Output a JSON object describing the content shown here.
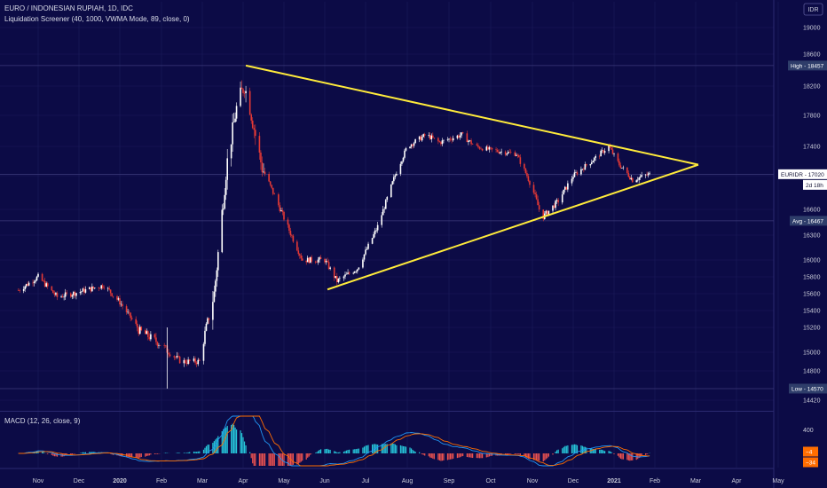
{
  "header": {
    "title": "EURO / INDONESIAN RUPIAH, 1D, IDC",
    "indicator": "Liquidation Screener (40, 1000, VWMA Mode, 89, close, 0)",
    "macd_title": "MACD (12, 26, close, 9)",
    "currency_button": "IDR"
  },
  "colors": {
    "background": "#0c0b46",
    "grid": "#1c1b5a",
    "up_candle": "#ffffff",
    "down_candle": "#e53935",
    "triangle": "#ffeb3b",
    "macd_line": "#2196f3",
    "signal_line": "#ff6d00",
    "hist_up": "#26c6da",
    "hist_down": "#ef5350"
  },
  "tags": {
    "high": "High - 18457",
    "price": "EURIDR - 17020",
    "countdown": "2d 18h",
    "avg": "Avg - 16467",
    "low": "Low - 14570"
  },
  "macd_axis": {
    "label": "400",
    "value_1": "−4",
    "value_2": "−34"
  },
  "chart_data": {
    "type": "candlestick",
    "symbol": "EURIDR",
    "timeframe": "1D",
    "source": "IDC",
    "y_ticks": [
      19000,
      18600,
      18200,
      17800,
      17400,
      17000,
      16600,
      16300,
      16000,
      15800,
      15600,
      15400,
      15200,
      15000,
      14800,
      14420
    ],
    "ylim": [
      14350,
      19150
    ],
    "x_ticks": [
      "Nov",
      "Dec",
      "2020",
      "Feb",
      "Mar",
      "Apr",
      "May",
      "Jun",
      "Jul",
      "Aug",
      "Sep",
      "Oct",
      "Nov",
      "Dec",
      "2021",
      "Feb",
      "Mar",
      "Apr",
      "May"
    ],
    "x_tick_start": "2019-11",
    "key_levels": {
      "high": 18457,
      "last": 17020,
      "avg": 16467,
      "low": 14570
    },
    "close_path": [
      [
        "2019-10-17",
        15640
      ],
      [
        "2019-11-01",
        15800
      ],
      [
        "2019-11-15",
        15560
      ],
      [
        "2019-12-01",
        15620
      ],
      [
        "2019-12-20",
        15700
      ],
      [
        "2020-01-01",
        15500
      ],
      [
        "2020-01-15",
        15180
      ],
      [
        "2020-02-01",
        15060
      ],
      [
        "2020-02-15",
        14900
      ],
      [
        "2020-02-28",
        14900
      ],
      [
        "2020-03-10",
        15600
      ],
      [
        "2020-03-20",
        17200
      ],
      [
        "2020-03-28",
        18000
      ],
      [
        "2020-04-02",
        18200
      ],
      [
        "2020-04-06",
        17900
      ],
      [
        "2020-04-15",
        17100
      ],
      [
        "2020-05-01",
        16500
      ],
      [
        "2020-05-15",
        16000
      ],
      [
        "2020-06-01",
        16000
      ],
      [
        "2020-06-10",
        15750
      ],
      [
        "2020-06-25",
        15900
      ],
      [
        "2020-07-10",
        16400
      ],
      [
        "2020-07-25",
        17100
      ],
      [
        "2020-08-01",
        17400
      ],
      [
        "2020-08-15",
        17550
      ],
      [
        "2020-08-25",
        17450
      ],
      [
        "2020-09-10",
        17550
      ],
      [
        "2020-09-20",
        17400
      ],
      [
        "2020-10-01",
        17350
      ],
      [
        "2020-10-20",
        17300
      ],
      [
        "2020-11-01",
        16850
      ],
      [
        "2020-11-08",
        16500
      ],
      [
        "2020-11-20",
        16700
      ],
      [
        "2020-12-01",
        17000
      ],
      [
        "2020-12-15",
        17200
      ],
      [
        "2020-12-28",
        17400
      ],
      [
        "2021-01-05",
        17150
      ],
      [
        "2021-01-15",
        16950
      ],
      [
        "2021-01-28",
        17020
      ]
    ],
    "triangle": {
      "upper": [
        [
          "2020-04-03",
          18457
        ],
        [
          "2021-03-03",
          17150
        ]
      ],
      "lower": [
        [
          "2020-06-03",
          15650
        ],
        [
          "2021-03-03",
          17150
        ]
      ]
    },
    "macd": {
      "fast": 12,
      "slow": 26,
      "source": "close",
      "signal": 9
    }
  }
}
